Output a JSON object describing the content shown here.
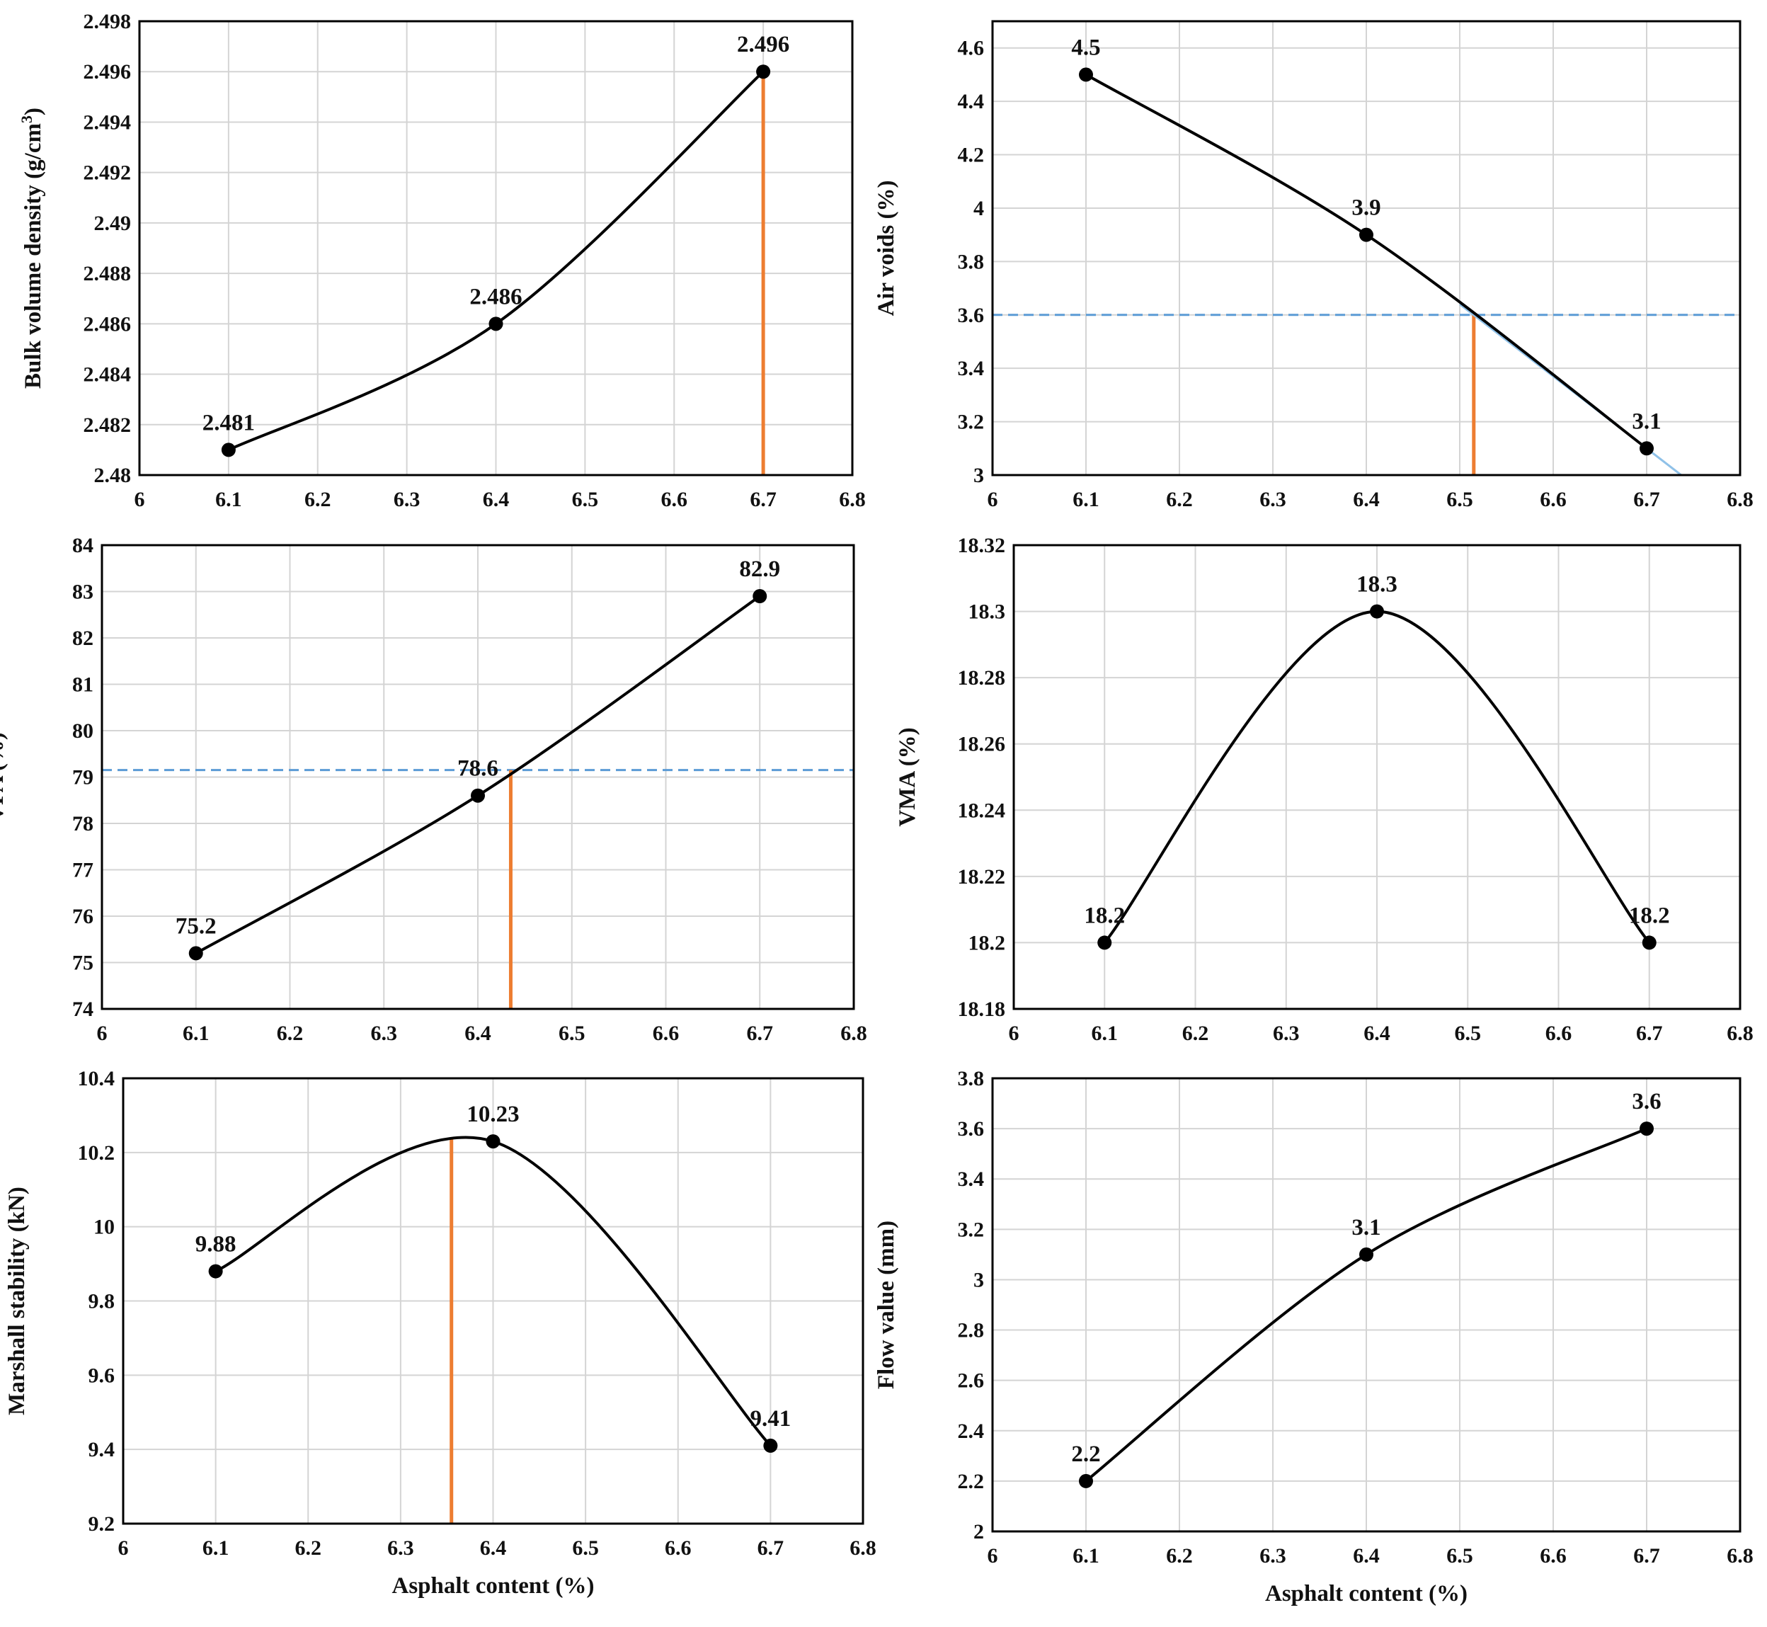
{
  "colors": {
    "curve": "#000000",
    "marker": "#000000",
    "vertical_marker": "#ed7d31",
    "horizontal_target": "#5b9bd5",
    "gridline": "#d4d4d4"
  },
  "chart_data": [
    {
      "id": "bulk-density",
      "type": "line",
      "ylabel_html": "Bulk volume density (g/cm<tspan baseline-shift=\"super\" font-size=\"22\">3</tspan>)",
      "ylabel": "Bulk volume density (g/cm3)",
      "xlabel": "",
      "x": [
        6.1,
        6.4,
        6.7
      ],
      "values": [
        2.481,
        2.486,
        2.496
      ],
      "data_labels": [
        "2.481",
        "2.486",
        "2.496"
      ],
      "xlim": [
        6,
        6.8
      ],
      "ylim": [
        2.48,
        2.498
      ],
      "xticks": [
        "6",
        "6.1",
        "6.2",
        "6.3",
        "6.4",
        "6.5",
        "6.6",
        "6.7",
        "6.8"
      ],
      "yticks": [
        "2.48",
        "2.482",
        "2.484",
        "2.486",
        "2.488",
        "2.49",
        "2.492",
        "2.494",
        "2.496",
        "2.498"
      ],
      "vertical_marker_x": 6.7,
      "vertical_marker_top": 2.496
    },
    {
      "id": "air-voids",
      "type": "line",
      "ylabel": "Air voids (%)",
      "xlabel": "",
      "x": [
        6.1,
        6.4,
        6.7
      ],
      "values": [
        4.5,
        3.9,
        3.1
      ],
      "data_labels": [
        "4.5",
        "3.9",
        "3.1"
      ],
      "xlim": [
        6,
        6.8
      ],
      "ylim": [
        3,
        4.7
      ],
      "xticks": [
        "6",
        "6.1",
        "6.2",
        "6.3",
        "6.4",
        "6.5",
        "6.6",
        "6.7",
        "6.8"
      ],
      "yticks": [
        "3",
        "3.2",
        "3.4",
        "3.6",
        "3.8",
        "4",
        "4.2",
        "4.4",
        "4.6"
      ],
      "target_y": 3.6,
      "vertical_marker_x": 6.515,
      "vertical_marker_top": 3.6,
      "trendline": {
        "from": [
          6.5,
          3.64
        ],
        "to": [
          6.737,
          3.0
        ]
      }
    },
    {
      "id": "vfa",
      "type": "line",
      "ylabel": "VFA (%)",
      "xlabel": "",
      "x": [
        6.1,
        6.4,
        6.7
      ],
      "values": [
        75.2,
        78.6,
        82.9
      ],
      "data_labels": [
        "75.2",
        "78.6",
        "82.9"
      ],
      "xlim": [
        6,
        6.8
      ],
      "ylim": [
        74,
        84
      ],
      "xticks": [
        "6",
        "6.1",
        "6.2",
        "6.3",
        "6.4",
        "6.5",
        "6.6",
        "6.7",
        "6.8"
      ],
      "yticks": [
        "74",
        "75",
        "76",
        "77",
        "78",
        "79",
        "80",
        "81",
        "82",
        "83",
        "84"
      ],
      "target_y": 79.15,
      "vertical_marker_x": 6.435,
      "vertical_marker_top": 79.15
    },
    {
      "id": "vma",
      "type": "line",
      "ylabel": "VMA (%)",
      "xlabel": "",
      "x": [
        6.1,
        6.4,
        6.7
      ],
      "values": [
        18.2,
        18.3,
        18.2
      ],
      "data_labels": [
        "18.2",
        "18.3",
        "18.2"
      ],
      "xlim": [
        6,
        6.8
      ],
      "ylim": [
        18.18,
        18.32
      ],
      "xticks": [
        "6",
        "6.1",
        "6.2",
        "6.3",
        "6.4",
        "6.5",
        "6.6",
        "6.7",
        "6.8"
      ],
      "yticks": [
        "18.18",
        "18.2",
        "18.22",
        "18.24",
        "18.26",
        "18.28",
        "18.3",
        "18.32"
      ]
    },
    {
      "id": "marshall-stability",
      "type": "line",
      "ylabel": "Marshall stability (kN)",
      "xlabel": "Asphalt content (%)",
      "x": [
        6.1,
        6.4,
        6.7
      ],
      "values": [
        9.88,
        10.23,
        9.41
      ],
      "data_labels": [
        "9.88",
        "10.23",
        "9.41"
      ],
      "xlim": [
        6,
        6.8
      ],
      "ylim": [
        9.2,
        10.4
      ],
      "xticks": [
        "6",
        "6.1",
        "6.2",
        "6.3",
        "6.4",
        "6.5",
        "6.6",
        "6.7",
        "6.8"
      ],
      "yticks": [
        "9.2",
        "9.4",
        "9.6",
        "9.8",
        "10",
        "10.2",
        "10.4"
      ],
      "vertical_marker_x": 6.355,
      "vertical_marker_top": 10.24
    },
    {
      "id": "flow-value",
      "type": "line",
      "ylabel": "Flow value (mm)",
      "xlabel": "Asphalt content (%)",
      "x": [
        6.1,
        6.4,
        6.7
      ],
      "values": [
        2.2,
        3.1,
        3.6
      ],
      "data_labels": [
        "2.2",
        "3.1",
        "3.6"
      ],
      "xlim": [
        6,
        6.8
      ],
      "ylim": [
        2,
        3.8
      ],
      "xticks": [
        "6",
        "6.1",
        "6.2",
        "6.3",
        "6.4",
        "6.5",
        "6.6",
        "6.7",
        "6.8"
      ],
      "yticks": [
        "2",
        "2.2",
        "2.4",
        "2.6",
        "2.8",
        "3",
        "3.2",
        "3.4",
        "3.6",
        "3.8"
      ]
    }
  ]
}
